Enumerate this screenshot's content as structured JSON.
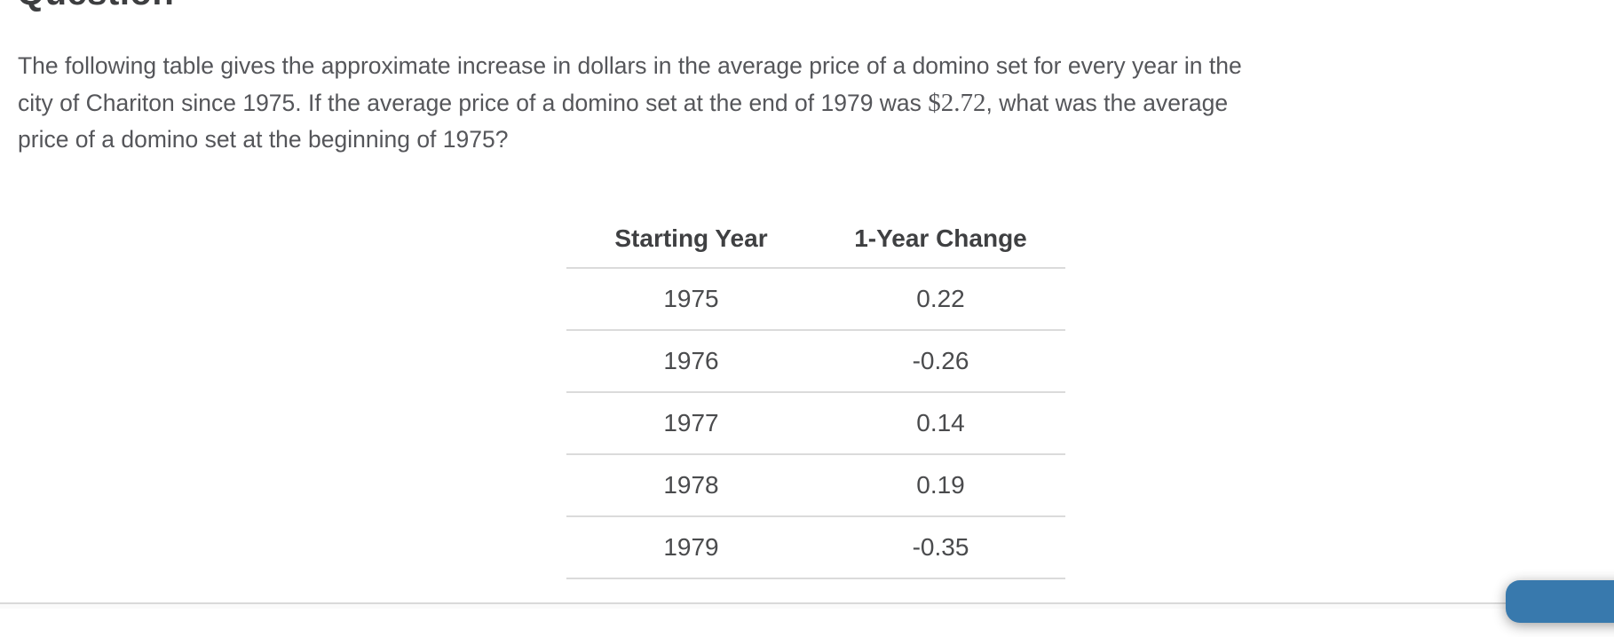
{
  "page": {
    "heading": "Question"
  },
  "question": {
    "line1": "The following table gives the approximate increase in dollars in the average price of a domino set for every year in the",
    "line2_pre": "city of Chariton since 1975. If the average price of a domino set at the end of 1979 was ",
    "line2_math": "$2.72",
    "line2_post": ", what was the average",
    "line3": "price of a domino set at the beginning of 1975?"
  },
  "table": {
    "headers": [
      "Starting Year",
      "1-Year Change"
    ],
    "rows": [
      {
        "year": "1975",
        "change": "0.22"
      },
      {
        "year": "1976",
        "change": "-0.26"
      },
      {
        "year": "1977",
        "change": "0.14"
      },
      {
        "year": "1978",
        "change": "0.19"
      },
      {
        "year": "1979",
        "change": "-0.35"
      }
    ]
  },
  "colors": {
    "accent_blue": "#3879ad",
    "divider_gray": "#dbdbdb",
    "heading_text": "#3d3e40",
    "body_text": "#55565a"
  }
}
